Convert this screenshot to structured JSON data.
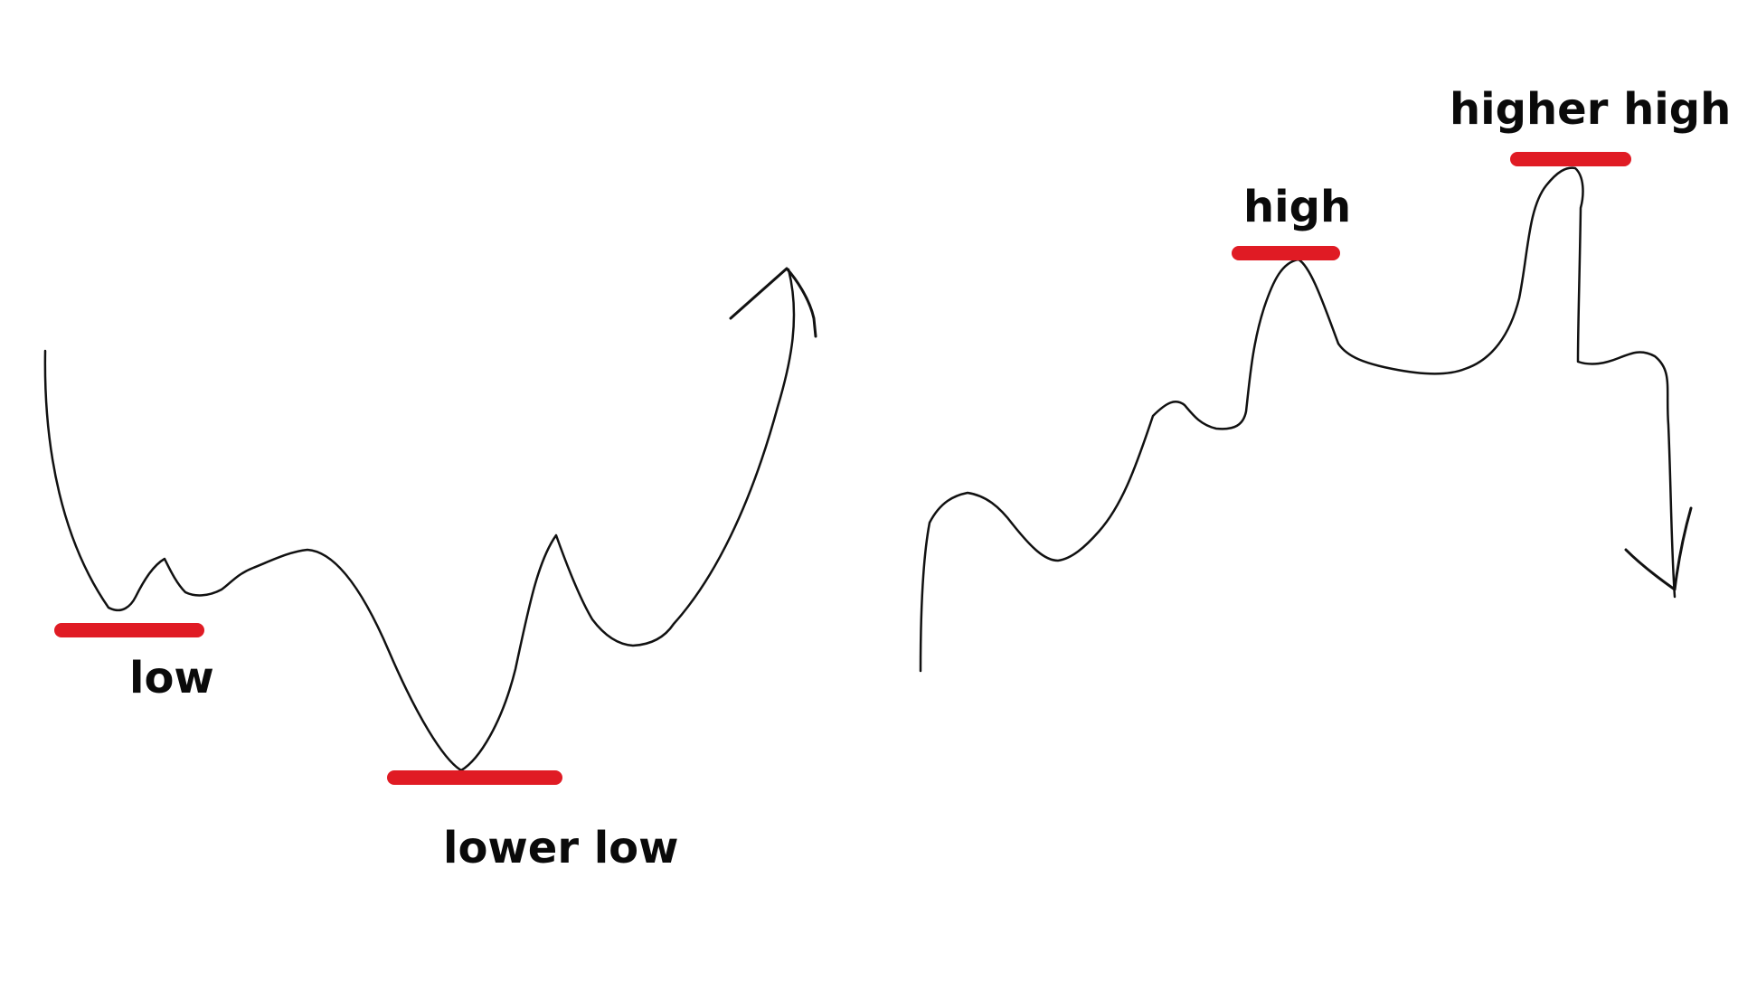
{
  "colors": {
    "background": "#ffffff",
    "line": "#111111",
    "marker": "#e01b24",
    "text": "#0a0a0a"
  },
  "left_panel": {
    "labels": {
      "low": "low",
      "lower_low": "lower low"
    },
    "arrow_direction": "up"
  },
  "right_panel": {
    "labels": {
      "high": "high",
      "higher_high": "higher high"
    },
    "arrow_direction": "down"
  }
}
